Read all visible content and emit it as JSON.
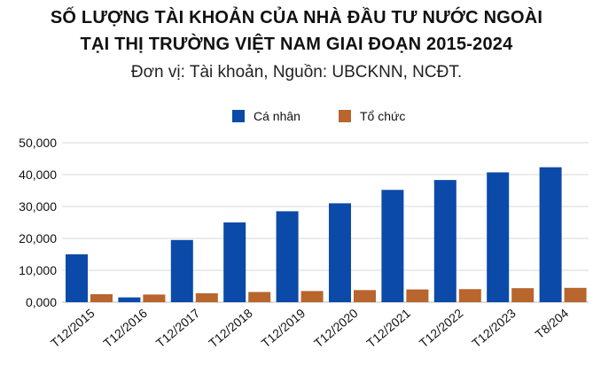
{
  "chart_data": {
    "type": "bar",
    "title_line1": "SỐ LƯỢNG TÀI KHOẢN CỦA NHÀ ĐẦU TƯ NƯỚC NGOÀI",
    "title_line2": "TẠI THỊ TRƯỜNG VIỆT NAM GIAI ĐOẠN 2015-2024",
    "subtitle": "Đơn vị: Tài khoản, Nguồn: UBCKNN, NCĐT.",
    "xlabel": "",
    "ylabel": "",
    "categories": [
      "T12/2015",
      "T12/2016",
      "T12/2017",
      "T12/2018",
      "T12/2019",
      "T12/2020",
      "T12/2021",
      "T12/2022",
      "T12/2023",
      "T8/204"
    ],
    "series": [
      {
        "name": "Cá nhân",
        "color": "#0b4aa8",
        "values": [
          15000,
          1500,
          19500,
          25000,
          28500,
          31000,
          35200,
          38300,
          40700,
          42300
        ]
      },
      {
        "name": "Tổ chức",
        "color": "#b8652e",
        "values": [
          2500,
          2400,
          2800,
          3200,
          3500,
          3800,
          4000,
          4100,
          4400,
          4500
        ]
      }
    ],
    "ylim": [
      0,
      50000
    ],
    "yticks": [
      "0,000",
      "10,000",
      "20,000",
      "30,000",
      "40,000",
      "50,000"
    ],
    "grid": true,
    "legend_position": "top-center"
  }
}
